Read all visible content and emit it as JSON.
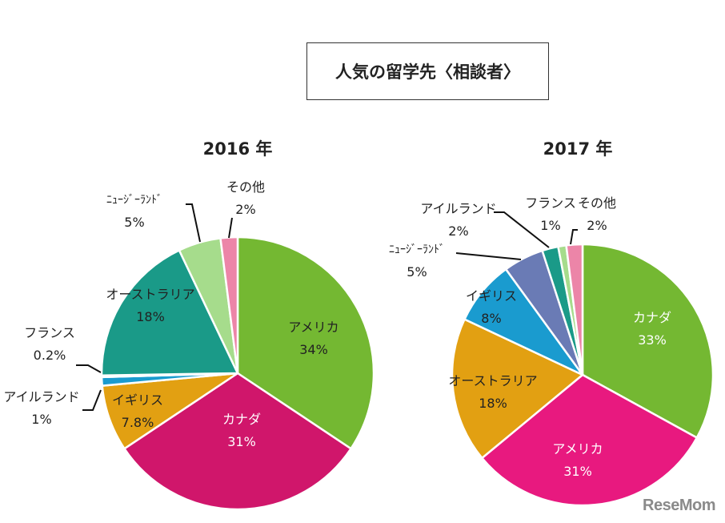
{
  "title": "人気の留学先〈相談者〉",
  "logo": "ReseMom",
  "chart_data": [
    {
      "type": "pie",
      "title": "2016 年",
      "start": "top",
      "direction": "clockwise",
      "slices": [
        {
          "label": "アメリカ",
          "value": 34,
          "display": "34%",
          "color": "#74b832"
        },
        {
          "label": "カナダ",
          "value": 31,
          "display": "31%",
          "color": "#d0166b"
        },
        {
          "label": "イギリス",
          "value": 7.8,
          "display": "7.8%",
          "color": "#e2a012"
        },
        {
          "label": "アイルランド",
          "value": 1,
          "display": "1%",
          "color": "#1a9bcf"
        },
        {
          "label": "フランス",
          "value": 0.2,
          "display": "0.2%",
          "color": "#9fd0e0"
        },
        {
          "label": "オーストラリア",
          "value": 18,
          "display": "18%",
          "color": "#1a9a88"
        },
        {
          "label": "ﾆｭｰｼﾞｰﾗﾝﾄﾞ",
          "value": 5,
          "display": "5%",
          "color": "#a6dc8c"
        },
        {
          "label": "その他",
          "value": 2,
          "display": "2%",
          "color": "#ec85a8"
        }
      ]
    },
    {
      "type": "pie",
      "title": "2017 年",
      "start": "top",
      "direction": "clockwise",
      "slices": [
        {
          "label": "カナダ",
          "value": 33,
          "display": "33%",
          "color": "#74b832"
        },
        {
          "label": "アメリカ",
          "value": 31,
          "display": "31%",
          "color": "#e8197f"
        },
        {
          "label": "オーストラリア",
          "value": 18,
          "display": "18%",
          "color": "#e2a012"
        },
        {
          "label": "イギリス",
          "value": 8,
          "display": "8%",
          "color": "#1a9bcf"
        },
        {
          "label": "ﾆｭｰｼﾞｰﾗﾝﾄﾞ",
          "value": 5,
          "display": "5%",
          "color": "#6a7bb5"
        },
        {
          "label": "アイルランド",
          "value": 2,
          "display": "2%",
          "color": "#1a9a88"
        },
        {
          "label": "フランス",
          "value": 1,
          "display": "1%",
          "color": "#a6dc8c"
        },
        {
          "label": "その他",
          "value": 2,
          "display": "2%",
          "color": "#ec85a8"
        }
      ]
    }
  ]
}
